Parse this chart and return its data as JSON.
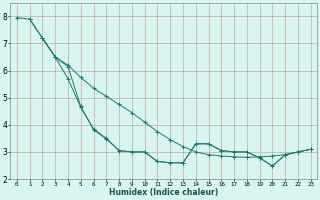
{
  "xlabel": "Humidex (Indice chaleur)",
  "bg_color": "#d8f5ef",
  "grid_color": "#c4a8a8",
  "line_color": "#1a7a6e",
  "xlim": [
    -0.5,
    23.5
  ],
  "ylim": [
    2,
    8.5
  ],
  "xticks": [
    0,
    1,
    2,
    3,
    4,
    5,
    6,
    7,
    8,
    9,
    10,
    11,
    12,
    13,
    14,
    15,
    16,
    17,
    18,
    19,
    20,
    21,
    22,
    23
  ],
  "yticks": [
    2,
    3,
    4,
    5,
    6,
    7,
    8
  ],
  "line1_x": [
    0,
    1,
    2,
    3,
    4,
    5,
    6,
    7,
    8,
    9,
    10,
    11,
    12,
    13,
    14,
    15,
    16,
    17,
    18,
    19,
    20,
    21,
    22,
    23
  ],
  "line1_y": [
    7.95,
    7.9,
    7.2,
    6.5,
    6.2,
    5.75,
    5.35,
    5.05,
    4.75,
    4.45,
    4.1,
    3.75,
    3.45,
    3.2,
    3.0,
    2.9,
    2.85,
    2.82,
    2.8,
    2.82,
    2.85,
    2.9,
    3.0,
    3.1
  ],
  "line2_x": [
    1,
    2,
    3,
    4,
    5,
    6,
    7,
    8,
    9,
    10,
    11,
    12,
    13,
    14,
    15,
    16,
    17,
    18,
    19,
    20,
    21,
    22,
    23
  ],
  "line2_y": [
    7.9,
    7.2,
    6.5,
    5.7,
    4.65,
    3.85,
    3.5,
    3.05,
    3.0,
    3.0,
    2.65,
    2.6,
    2.6,
    3.3,
    3.3,
    3.05,
    3.0,
    3.0,
    2.78,
    2.48,
    2.9,
    3.0,
    3.1
  ],
  "line3_x": [
    2,
    3,
    4,
    5,
    6,
    7,
    8,
    9,
    10,
    11,
    12,
    13,
    14,
    15,
    16,
    17,
    18,
    19,
    20,
    21,
    22,
    23
  ],
  "line3_y": [
    7.2,
    6.5,
    6.15,
    4.68,
    3.82,
    3.48,
    3.05,
    3.0,
    3.0,
    2.65,
    2.6,
    2.6,
    3.3,
    3.3,
    3.05,
    3.0,
    3.0,
    2.78,
    2.48,
    2.9,
    3.0,
    3.1
  ]
}
